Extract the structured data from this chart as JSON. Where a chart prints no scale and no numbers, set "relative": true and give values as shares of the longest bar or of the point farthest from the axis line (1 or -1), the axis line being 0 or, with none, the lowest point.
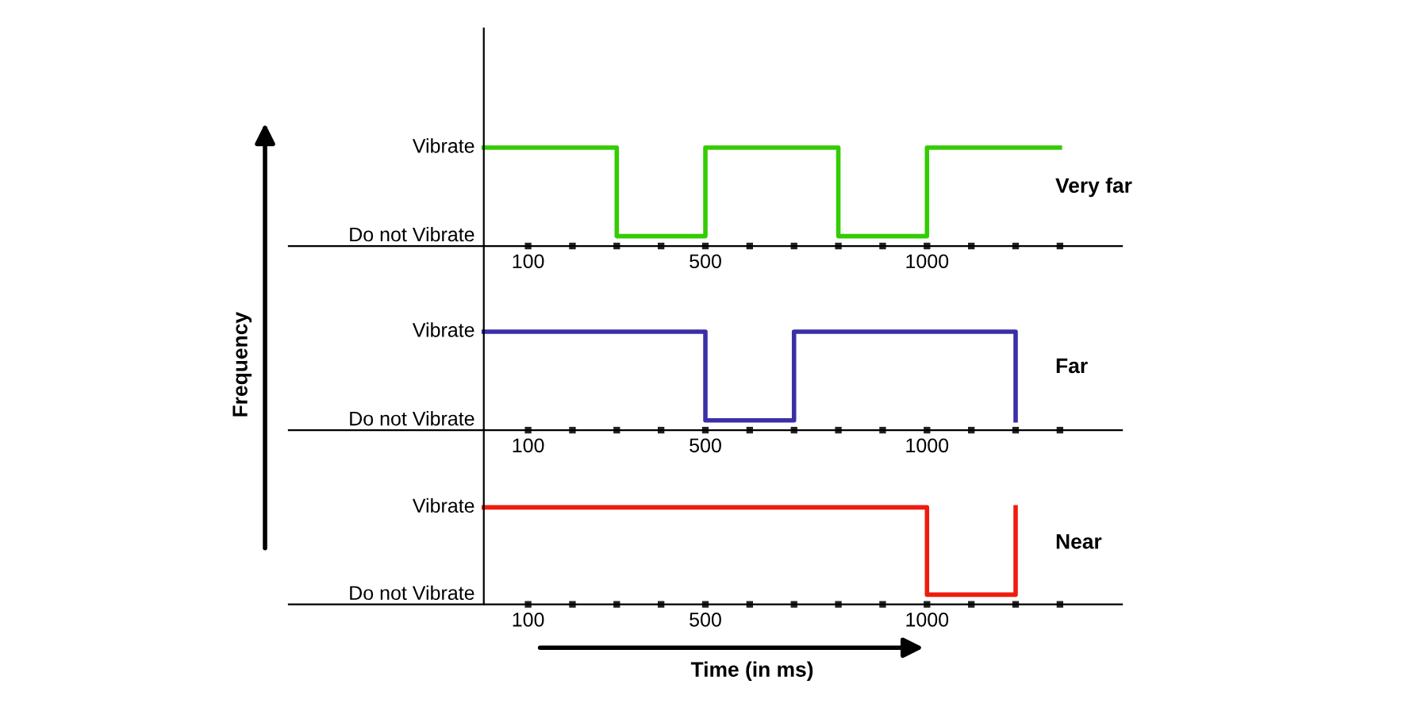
{
  "chart_data": [
    {
      "type": "step",
      "title": "Very far",
      "ylabel": "Frequency",
      "relative": true,
      "series": [
        {
          "color": "#33cc00",
          "x": [
            0,
            300,
            500,
            800,
            1000,
            1300
          ],
          "values": [
            1,
            0.1,
            1,
            0.1,
            1,
            1
          ]
        }
      ],
      "annotations": [
        "Vibrate",
        "Do not Vibrate"
      ],
      "xlim": [
        -440,
        1440
      ],
      "xticks": [
        100,
        {
          "value": 200,
          "label": null
        },
        {
          "value": 300,
          "label": null
        },
        {
          "value": 400,
          "label": null
        },
        500,
        {
          "value": 600,
          "label": null
        },
        {
          "value": 700,
          "label": null
        },
        {
          "value": 800,
          "label": null
        },
        {
          "value": 900,
          "label": null
        },
        1000,
        {
          "value": 1100,
          "label": null
        },
        {
          "value": 1200,
          "label": null
        },
        {
          "value": 1300,
          "label": null
        }
      ],
      "grid": false,
      "legend": false,
      "marker": "none",
      "line_style": "solid"
    },
    {
      "type": "step",
      "title": "Far",
      "relative": true,
      "series": [
        {
          "color": "#3b2fa8",
          "x": [
            0,
            500,
            700,
            1200
          ],
          "values": [
            1,
            0.1,
            1,
            0.1
          ]
        }
      ],
      "annotations": [
        "Vibrate",
        "Do not Vibrate"
      ],
      "xlim": [
        -440,
        1440
      ],
      "xticks": [
        100,
        {
          "value": 200,
          "label": null
        },
        {
          "value": 300,
          "label": null
        },
        {
          "value": 400,
          "label": null
        },
        500,
        {
          "value": 600,
          "label": null
        },
        {
          "value": 700,
          "label": null
        },
        {
          "value": 800,
          "label": null
        },
        {
          "value": 900,
          "label": null
        },
        1000,
        {
          "value": 1100,
          "label": null
        },
        {
          "value": 1200,
          "label": null
        },
        {
          "value": 1300,
          "label": null
        }
      ],
      "grid": false,
      "legend": false,
      "marker": "none",
      "line_style": "solid"
    },
    {
      "type": "step",
      "title": "Near",
      "xlabel": "Time (in ms)",
      "relative": true,
      "series": [
        {
          "color": "#ee1c0e",
          "x": [
            0,
            1000,
            1200
          ],
          "values": [
            1,
            0.1,
            1
          ]
        }
      ],
      "annotations": [
        "Vibrate",
        "Do not Vibrate"
      ],
      "xlim": [
        -440,
        1440
      ],
      "xticks": [
        100,
        {
          "value": 200,
          "label": null
        },
        {
          "value": 300,
          "label": null
        },
        {
          "value": 400,
          "label": null
        },
        500,
        {
          "value": 600,
          "label": null
        },
        {
          "value": 700,
          "label": null
        },
        {
          "value": 800,
          "label": null
        },
        {
          "value": 900,
          "label": null
        },
        1000,
        {
          "value": 1100,
          "label": null
        },
        {
          "value": 1200,
          "label": null
        },
        {
          "value": 1300,
          "label": null
        }
      ],
      "grid": false,
      "legend": false,
      "marker": "none",
      "line_style": "solid"
    }
  ]
}
